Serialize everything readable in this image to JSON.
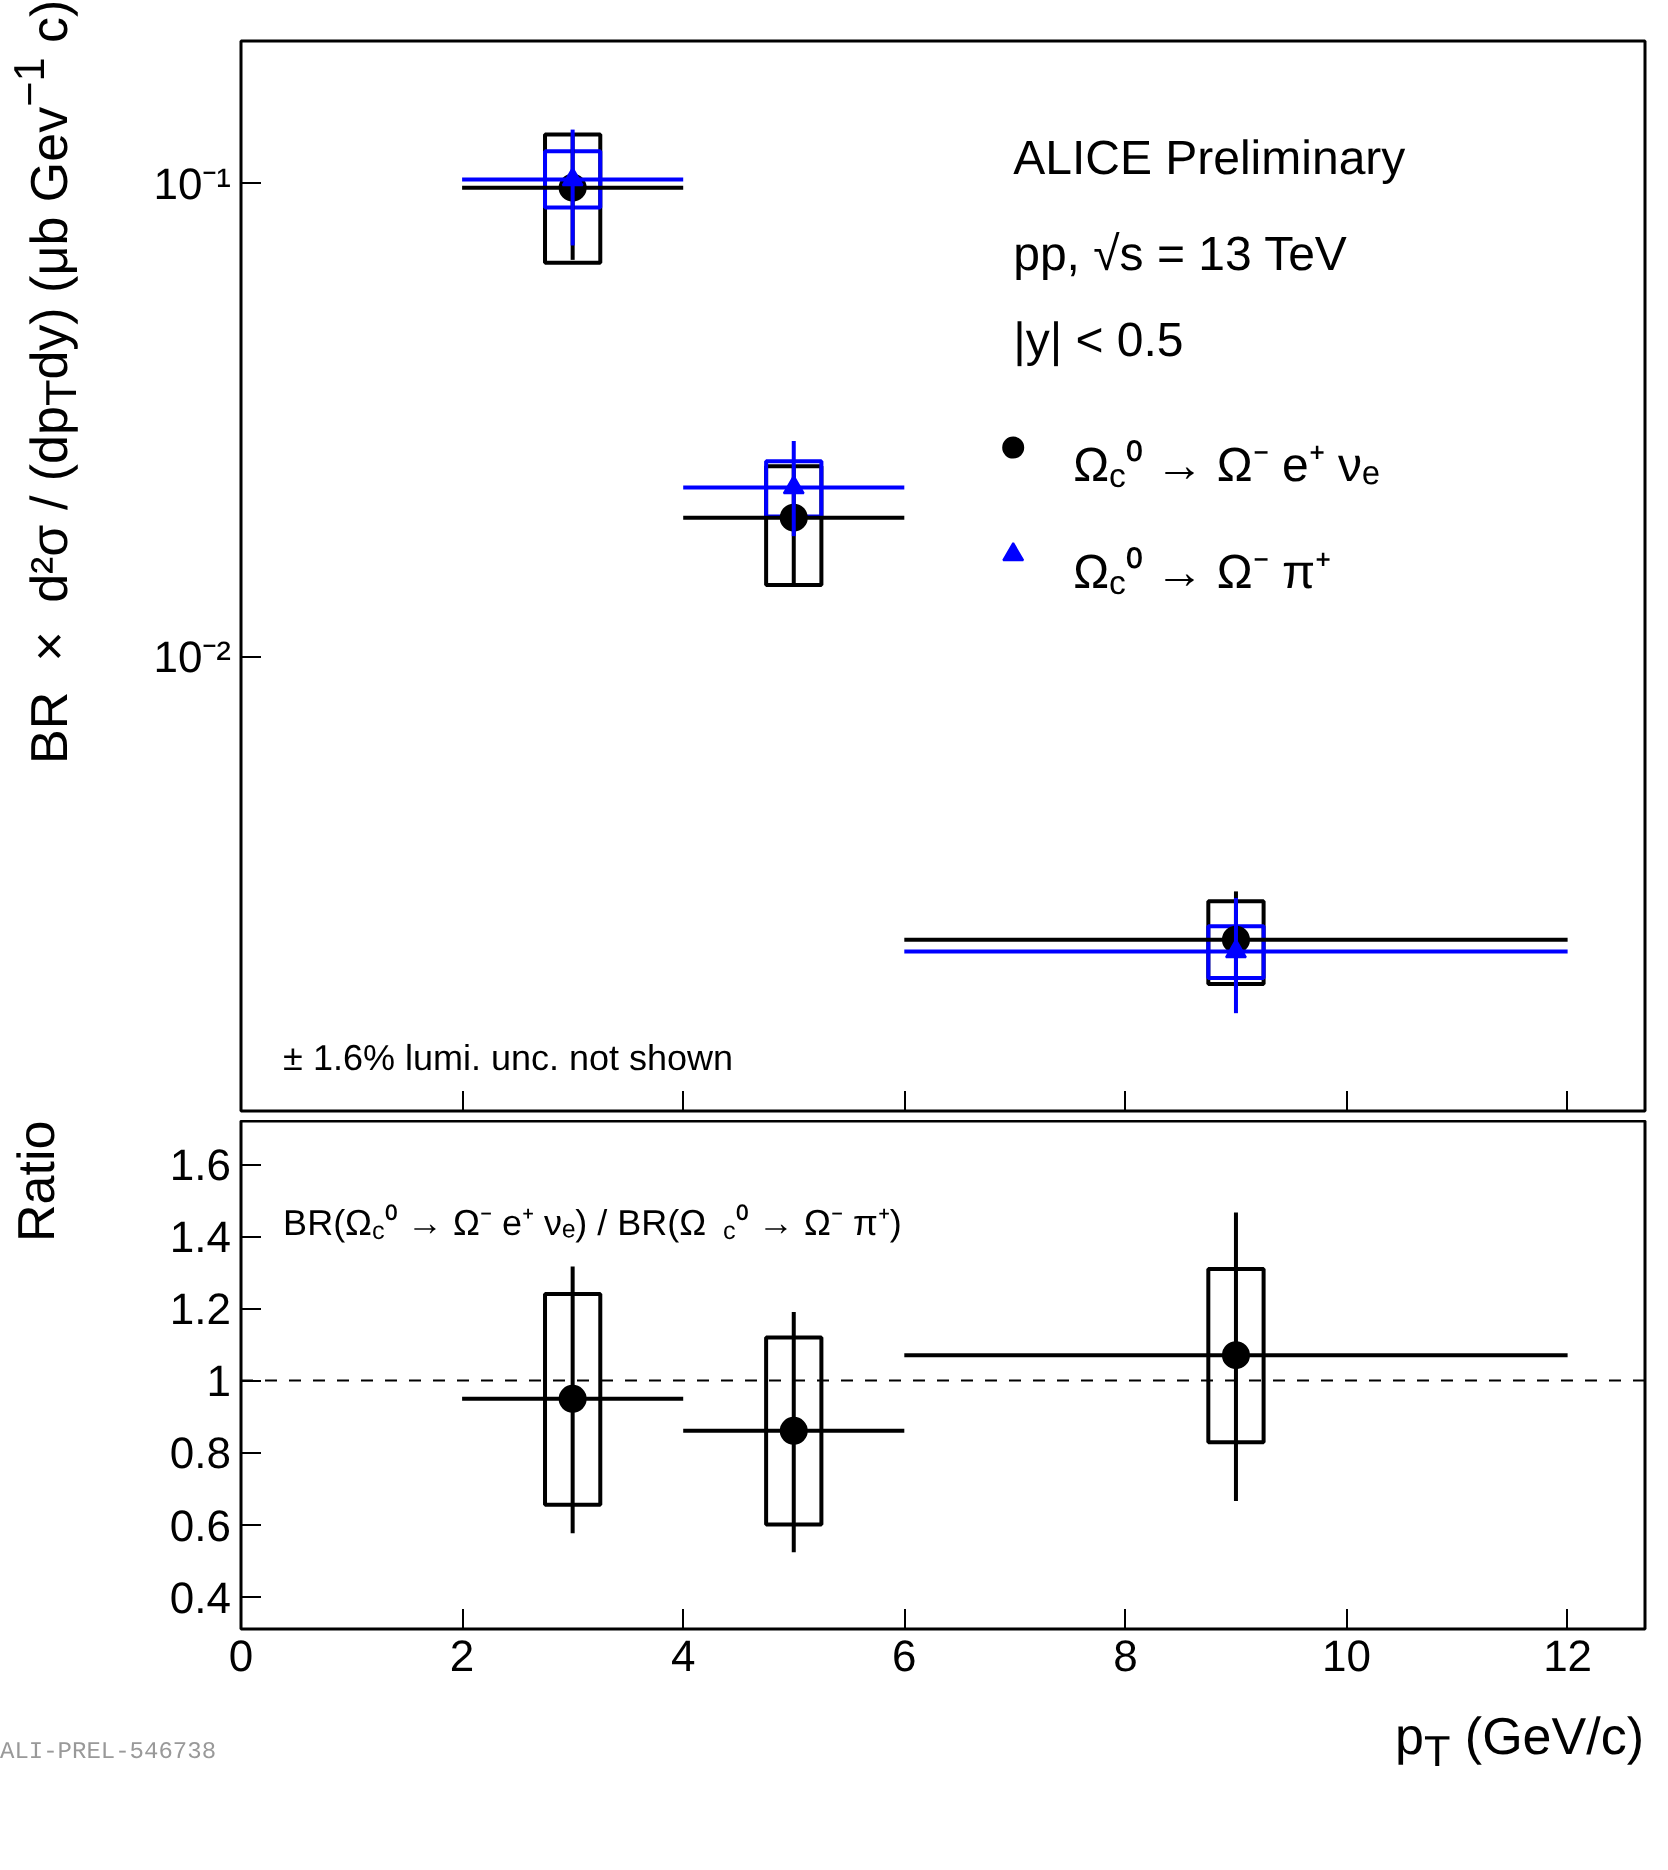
{
  "chart_data": [
    {
      "type": "scatter",
      "log": "y",
      "ylabel": "BR × d²σ / (dp$_{T}$dy) (μb Gev$^{−1}$ c)",
      "annotations": [
        "ALICE Preliminary",
        "pp, √s = 13 TeV",
        "|y| < 0.5",
        "± 1.6% lumi. unc. not shown"
      ],
      "xlim": [
        0,
        12.7
      ],
      "xticks": [
        0,
        2,
        4,
        6,
        8,
        10,
        12
      ],
      "ylim": [
        0.0011,
        0.2
      ],
      "yticks": [
        {
          "value": 0.01,
          "label": "10⁻²"
        },
        {
          "value": 0.1,
          "label": "10⁻¹"
        }
      ],
      "tick_labels": "y",
      "grid": false,
      "legend": "right",
      "series": [
        {
          "type": "bar",
          "color": "#000000",
          "x": [
            3,
            5,
            9
          ],
          "base": [
            0.068,
            0.0142,
            0.00204
          ],
          "values": [
            0.059,
            0.0111,
            0.00101
          ]
        },
        {
          "type": "bar",
          "color": "#0000ff",
          "x": [
            3,
            5,
            9
          ],
          "base": [
            0.089,
            0.0198,
            0.0021
          ],
          "values": [
            0.028,
            0.0061,
            0.0006
          ]
        },
        {
          "name": "Ω$_{c}$⁰ → Ω⁻ e⁺ νₑ",
          "color": "#000000",
          "marker": "circle",
          "x": [
            3,
            5,
            9
          ],
          "values": [
            0.098,
            0.0197,
            0.00253
          ],
          "errors": [
            [
              0.069,
              0.127
            ],
            [
              0.0142,
              0.0253
            ],
            [
              0.002,
              0.0032
            ]
          ],
          "xerrors": [
            1,
            1,
            3
          ]
        },
        {
          "name": "Ω$_{c}$⁰ → Ω⁻ π⁺",
          "color": "#0000ff",
          "marker": "triangle",
          "x": [
            3,
            5,
            9
          ],
          "values": [
            0.102,
            0.0228,
            0.00239
          ],
          "errors": [
            [
              0.074,
              0.13
            ],
            [
              0.018,
              0.0286
            ],
            [
              0.00177,
              0.0031
            ]
          ],
          "xerrors": [
            1,
            1,
            3
          ]
        }
      ]
    },
    {
      "type": "scatter",
      "xlabel": "p$_{T}$ (GeV/c)",
      "ylabel": "Ratio",
      "annotations": [
        "BR(Ω$_{c}$⁰ → Ω⁻ e⁺ νₑ) / BR(Ω$_{c}$⁰ → Ω⁻ π⁺)",
        "ALI-PREL-546738"
      ],
      "xlim": [
        0,
        12.7
      ],
      "xticks": [
        0,
        2,
        4,
        6,
        8,
        10,
        12
      ],
      "ylim": [
        0.31,
        1.72
      ],
      "yticks": [
        0.4,
        0.6,
        0.8,
        1,
        1.2,
        1.4,
        1.6
      ],
      "grid": false,
      "ref_lines": [
        {
          "axis": "y",
          "value": 1,
          "line_style": "dashed",
          "color": "#000000"
        }
      ],
      "series": [
        {
          "type": "bar",
          "color": "#000000",
          "x": [
            3,
            5,
            9
          ],
          "base": [
            0.655,
            0.6,
            0.828
          ],
          "values": [
            0.585,
            0.519,
            0.481
          ]
        },
        {
          "color": "#000000",
          "marker": "circle",
          "x": [
            3,
            5,
            9
          ],
          "values": [
            0.949,
            0.86,
            1.07
          ],
          "errors": [
            [
              0.576,
              1.316
            ],
            [
              0.523,
              1.19
            ],
            [
              0.665,
              1.466
            ]
          ],
          "xerrors": [
            1,
            1,
            3
          ]
        }
      ]
    }
  ]
}
